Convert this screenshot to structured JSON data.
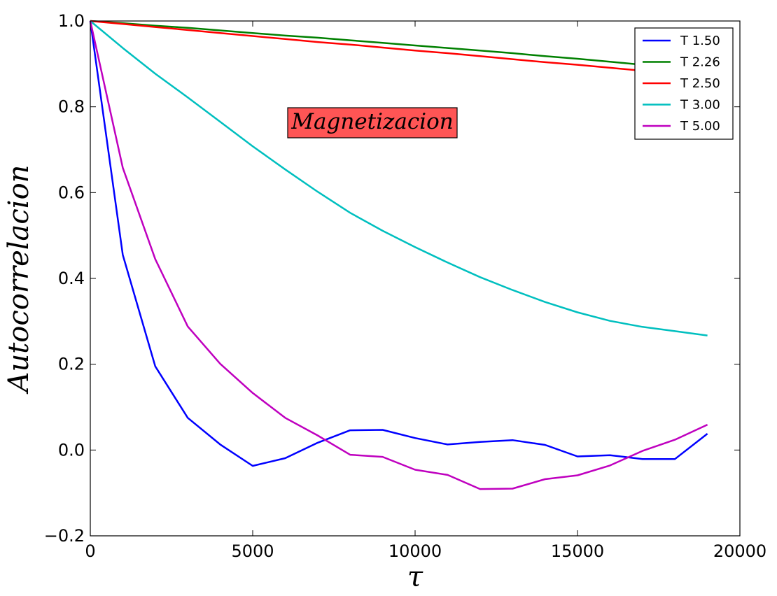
{
  "chart_data": {
    "type": "line",
    "xlabel": "τ",
    "ylabel": "Autocorrelacion",
    "annotation": "Magnetizacion",
    "annotation_color": "#ff5555",
    "xlim": [
      0,
      20000
    ],
    "ylim": [
      -0.2,
      1.0
    ],
    "xticks": [
      0,
      5000,
      10000,
      15000,
      20000
    ],
    "yticks": [
      -0.2,
      0.0,
      0.2,
      0.4,
      0.6,
      0.8,
      1.0
    ],
    "xtick_labels": [
      "0",
      "5000",
      "10000",
      "15000",
      "20000"
    ],
    "ytick_labels": [
      "−0.2",
      "0.0",
      "0.2",
      "0.4",
      "0.6",
      "0.8",
      "1.0"
    ],
    "grid": false,
    "legend_position": "top-right",
    "x": [
      0,
      1000,
      2000,
      3000,
      4000,
      5000,
      6000,
      7000,
      8000,
      9000,
      10000,
      11000,
      12000,
      13000,
      14000,
      15000,
      16000,
      17000,
      18000,
      19000
    ],
    "series": [
      {
        "name": "T 1.50",
        "color": "#0000ff",
        "values": [
          1.0,
          0.455,
          0.195,
          0.075,
          0.013,
          -0.037,
          -0.019,
          0.017,
          0.046,
          0.047,
          0.028,
          0.013,
          0.019,
          0.023,
          0.012,
          -0.015,
          -0.012,
          -0.021,
          -0.021,
          0.038
        ]
      },
      {
        "name": "T 2.26",
        "color": "#008000",
        "values": [
          1.0,
          0.995,
          0.989,
          0.984,
          0.978,
          0.972,
          0.966,
          0.961,
          0.955,
          0.949,
          0.943,
          0.937,
          0.931,
          0.925,
          0.918,
          0.912,
          0.905,
          0.898,
          0.892,
          0.886
        ]
      },
      {
        "name": "T 2.50",
        "color": "#ff0000",
        "values": [
          1.0,
          0.993,
          0.986,
          0.979,
          0.972,
          0.965,
          0.958,
          0.951,
          0.945,
          0.938,
          0.931,
          0.925,
          0.918,
          0.911,
          0.904,
          0.898,
          0.891,
          0.884,
          0.877,
          0.871
        ]
      },
      {
        "name": "T 3.00",
        "color": "#00bfbf",
        "values": [
          1.0,
          0.937,
          0.877,
          0.822,
          0.765,
          0.708,
          0.654,
          0.602,
          0.553,
          0.511,
          0.473,
          0.437,
          0.403,
          0.373,
          0.345,
          0.321,
          0.301,
          0.287,
          0.277,
          0.267
        ]
      },
      {
        "name": "T 5.00",
        "color": "#bf00bf",
        "values": [
          1.0,
          0.658,
          0.445,
          0.288,
          0.201,
          0.133,
          0.075,
          0.034,
          -0.011,
          -0.016,
          -0.046,
          -0.058,
          -0.091,
          -0.09,
          -0.068,
          -0.059,
          -0.036,
          -0.002,
          0.024,
          0.059
        ]
      }
    ]
  }
}
